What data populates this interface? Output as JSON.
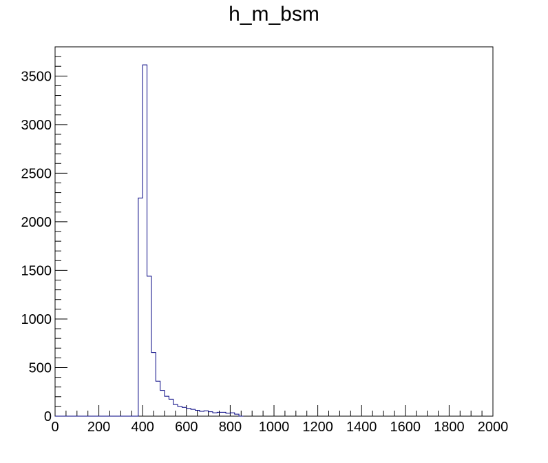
{
  "chart_data": {
    "type": "histogram",
    "title": "h_m_bsm",
    "xlabel": "",
    "ylabel": "",
    "xlim": [
      0,
      2000
    ],
    "ylim": [
      0,
      3800
    ],
    "x_ticks": [
      0,
      200,
      400,
      600,
      800,
      1000,
      1200,
      1400,
      1600,
      1800,
      2000
    ],
    "y_ticks": [
      0,
      500,
      1000,
      1500,
      2000,
      2500,
      3000,
      3500
    ],
    "bin_width": 20,
    "bin_edges_start": 0,
    "values": [
      0,
      0,
      0,
      0,
      0,
      0,
      0,
      0,
      0,
      0,
      0,
      0,
      0,
      0,
      0,
      0,
      0,
      0,
      0,
      2245,
      3615,
      1440,
      655,
      360,
      265,
      205,
      175,
      120,
      100,
      90,
      80,
      70,
      60,
      50,
      55,
      45,
      35,
      40,
      40,
      30,
      35,
      20,
      0
    ],
    "line_color": "#000080"
  }
}
